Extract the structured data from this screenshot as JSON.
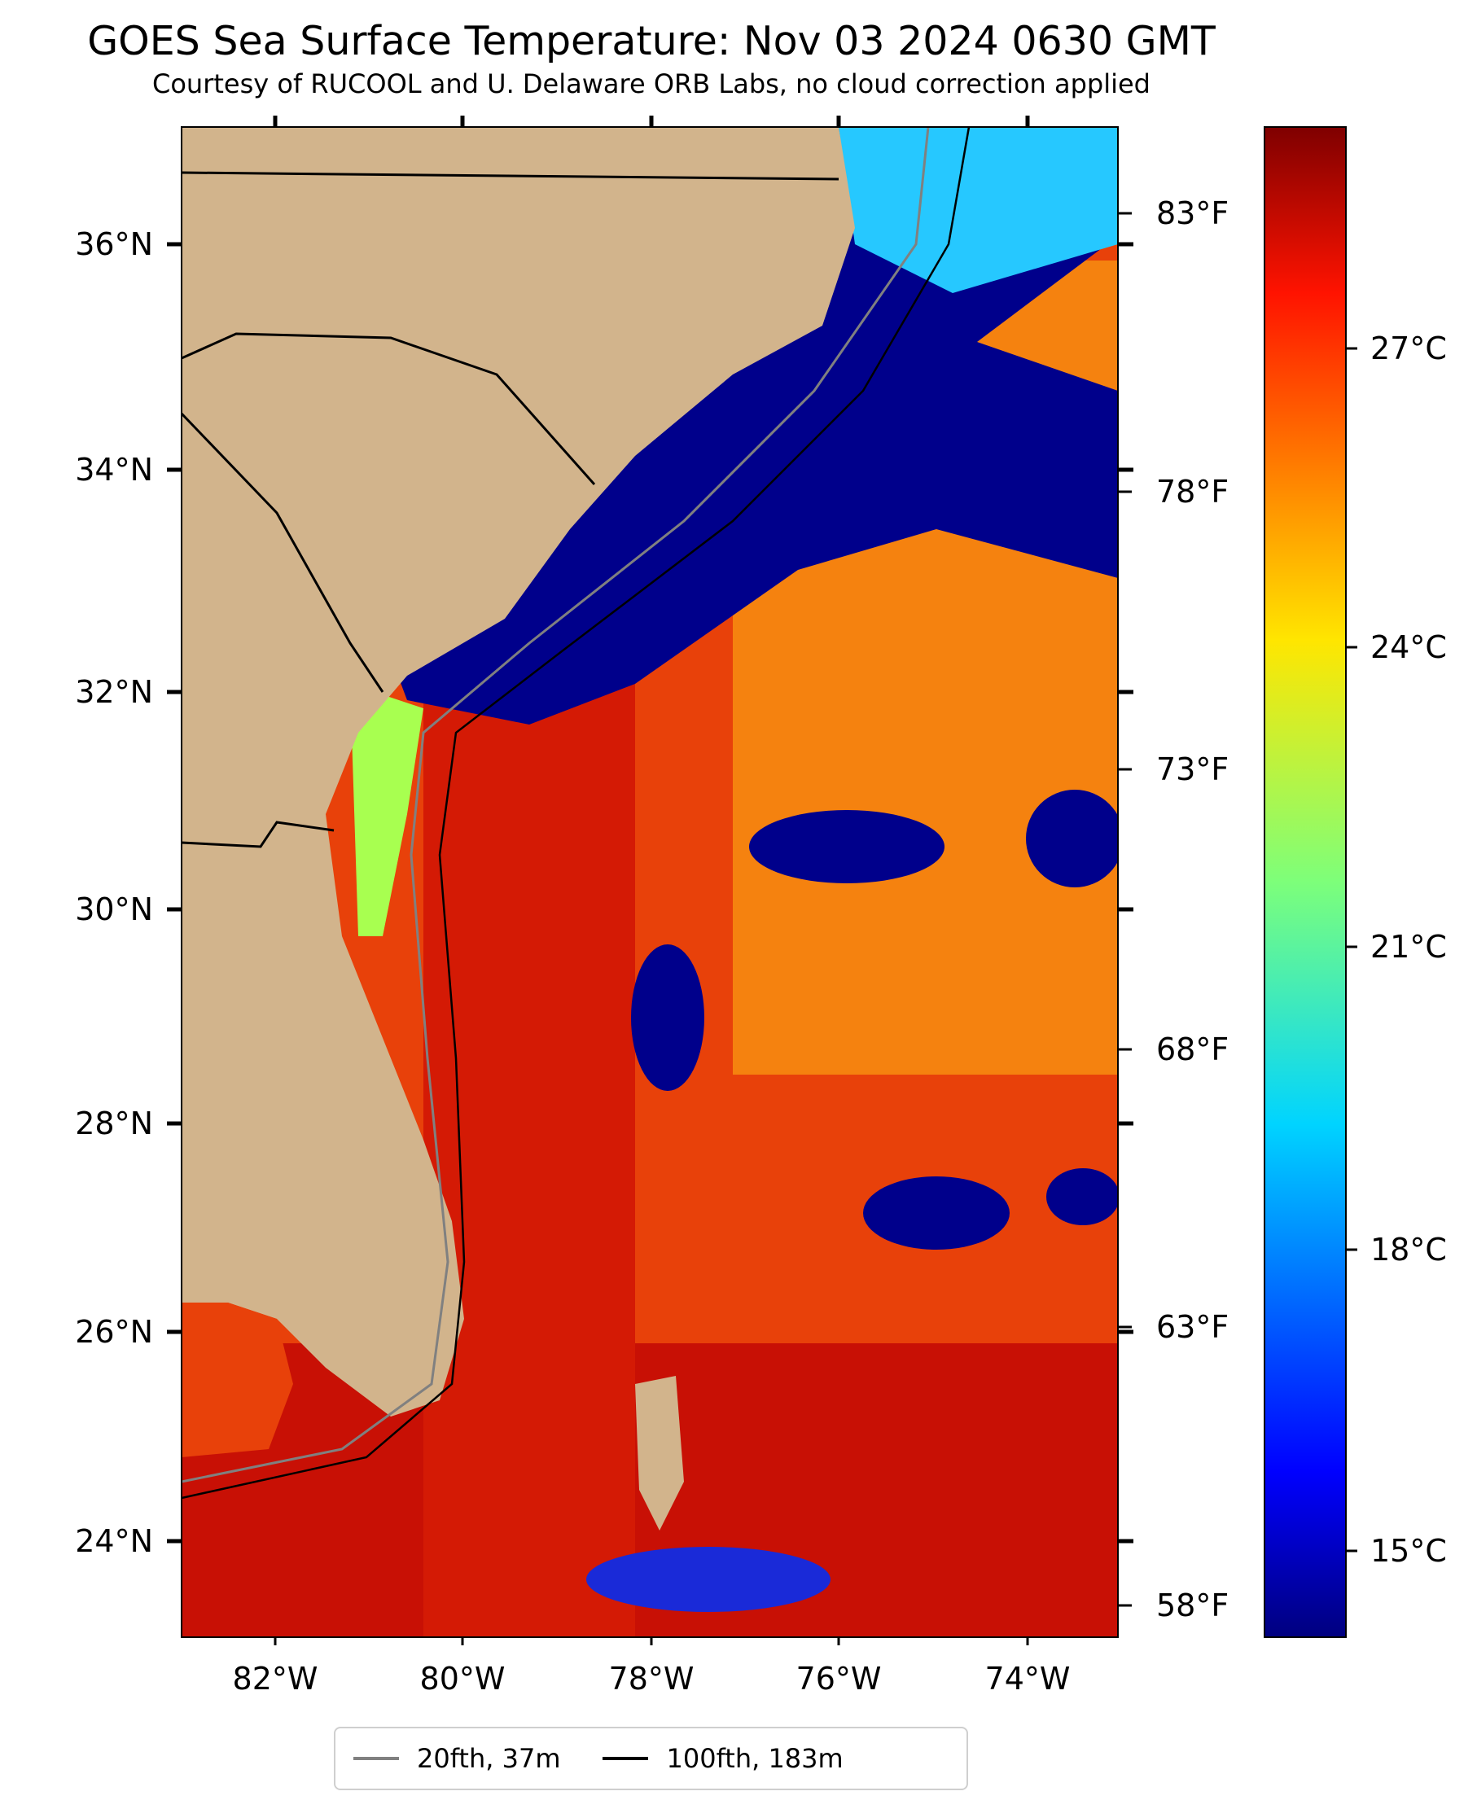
{
  "title": "GOES Sea Surface Temperature: Nov 03 2024 0630 GMT",
  "subtitle": "Courtesy of RUCOOL and U. Delaware ORB Labs, no cloud correction applied",
  "map": {
    "lon_labels": [
      "82°W",
      "80°W",
      "78°W",
      "76°W",
      "74°W"
    ],
    "lat_labels": [
      "24°N",
      "26°N",
      "28°N",
      "30°N",
      "32°N",
      "34°N",
      "36°N"
    ],
    "fahrenheit_labels": [
      "58°F",
      "63°F",
      "68°F",
      "73°F",
      "78°F",
      "83°F"
    ],
    "colors": {
      "land": "#d2b48c",
      "cold_water": "#00008b",
      "warm_water": "#e63c00"
    }
  },
  "colorbar": {
    "labels": [
      "15°C",
      "18°C",
      "21°C",
      "24°C",
      "27°C"
    ],
    "colormap": "jet"
  },
  "legend": [
    {
      "label": "20fth, 37m",
      "color": "#808080"
    },
    {
      "label": "100fth, 183m",
      "color": "#000000"
    }
  ]
}
